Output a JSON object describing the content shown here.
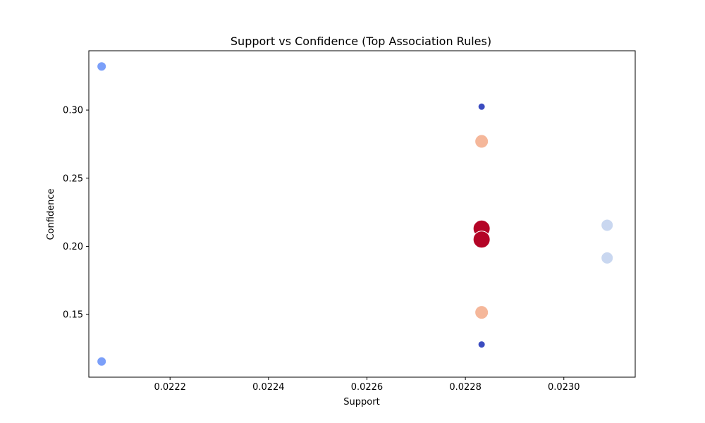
{
  "chart_data": {
    "type": "scatter",
    "title": "Support vs Confidence (Top Association Rules)",
    "xlabel": "Support",
    "ylabel": "Confidence",
    "xlim": [
      0.022035,
      0.023145
    ],
    "ylim": [
      0.104,
      0.3435
    ],
    "x_ticks": [
      0.0222,
      0.0224,
      0.0226,
      0.0228,
      0.023
    ],
    "x_tick_labels": [
      "0.0222",
      "0.0224",
      "0.0226",
      "0.0228",
      "0.0230"
    ],
    "y_ticks": [
      0.15,
      0.2,
      0.25,
      0.3
    ],
    "y_tick_labels": [
      "0.15",
      "0.20",
      "0.25",
      "0.30"
    ],
    "grid": false,
    "legend": "none",
    "colormap": "coolwarm",
    "points": [
      {
        "x": 0.022061,
        "y": 0.332,
        "color": "#7b9ff9",
        "size": "small-medium"
      },
      {
        "x": 0.022061,
        "y": 0.1155,
        "color": "#7b9ff9",
        "size": "small-medium"
      },
      {
        "x": 0.022833,
        "y": 0.3025,
        "color": "#3b4cc0",
        "size": "small"
      },
      {
        "x": 0.022833,
        "y": 0.128,
        "color": "#3b4cc0",
        "size": "small"
      },
      {
        "x": 0.022833,
        "y": 0.277,
        "color": "#f5b79a",
        "size": "large"
      },
      {
        "x": 0.022833,
        "y": 0.1515,
        "color": "#f5b79a",
        "size": "large"
      },
      {
        "x": 0.022833,
        "y": 0.213,
        "color": "#b40426",
        "size": "xlarge"
      },
      {
        "x": 0.022833,
        "y": 0.205,
        "color": "#b40426",
        "size": "xlarge"
      },
      {
        "x": 0.023088,
        "y": 0.2155,
        "color": "#c9d7f0",
        "size": "medium-large"
      },
      {
        "x": 0.023088,
        "y": 0.1915,
        "color": "#c9d7f0",
        "size": "medium-large"
      }
    ]
  }
}
